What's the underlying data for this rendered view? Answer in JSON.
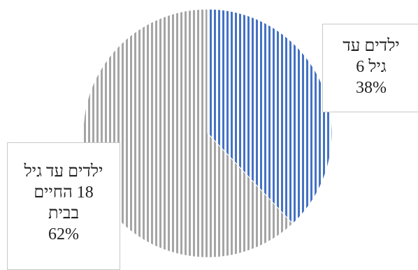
{
  "chart_data": {
    "type": "pie",
    "slices": [
      {
        "label_lines": [
          "ילדים עד",
          "גיל 6"
        ],
        "value": 38,
        "value_label": "38%",
        "color": "#4472c4",
        "pattern": "vertical-stripes"
      },
      {
        "label_lines": [
          "ילדים עד גיל",
          "18 החיים",
          "בבית"
        ],
        "value": 62,
        "value_label": "62%",
        "color": "#a5a5a5",
        "pattern": "vertical-stripes"
      }
    ],
    "start_angle_deg": 0,
    "direction": "clockwise",
    "legend": "none",
    "data_labels": "callout"
  }
}
